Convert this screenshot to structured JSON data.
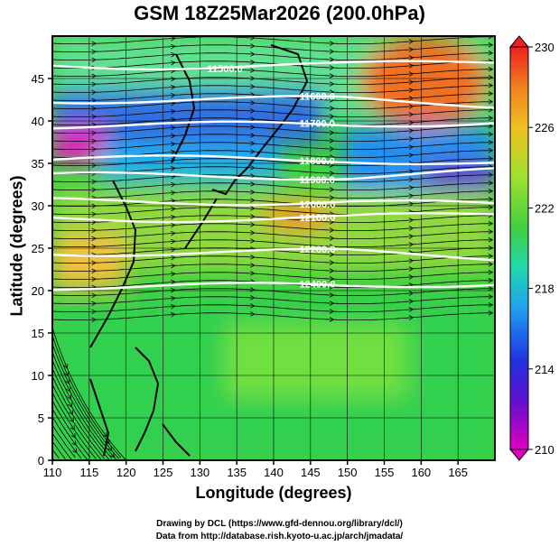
{
  "title": "GSM 18Z25Mar2026 (200.0hPa)",
  "x_axis": {
    "label": "Longitude (degrees)",
    "range": [
      110,
      170
    ],
    "ticks": [
      110,
      115,
      120,
      125,
      130,
      135,
      140,
      145,
      150,
      155,
      160,
      165
    ]
  },
  "y_axis": {
    "label": "Latitude  (degrees)",
    "range": [
      0,
      50
    ],
    "ticks": [
      0,
      5,
      10,
      15,
      20,
      25,
      30,
      35,
      40,
      45
    ]
  },
  "colorbar": {
    "range": [
      210,
      230
    ],
    "ticks": [
      210,
      214,
      218,
      222,
      226,
      230
    ],
    "colors": [
      "#e000c0",
      "#2020d0",
      "#20a0f0",
      "#20d0a0",
      "#50d050",
      "#b0e030",
      "#f0a020",
      "#f04020"
    ]
  },
  "contours": [
    {
      "label": "11500.0",
      "lat": 46.5
    },
    {
      "label": "11600.0",
      "lat": 42.5
    },
    {
      "label": "11700.0",
      "lat": 39.5
    },
    {
      "label": "11800.0",
      "lat": 35.5
    },
    {
      "label": "11900.0",
      "lat": 33.5
    },
    {
      "label": "12000.0",
      "lat": 30.5
    },
    {
      "label": "12100.0",
      "lat": 28.5
    },
    {
      "label": "12200.0",
      "lat": 24.5
    },
    {
      "label": "12400.0",
      "lat": 20.5
    }
  ],
  "credits": [
    "Drawing by DCL (https://www.gfd-dennou.org/library/dcl/)",
    "Data from http://database.rish.kyoto-u.ac.jp/arch/jmadata/"
  ]
}
